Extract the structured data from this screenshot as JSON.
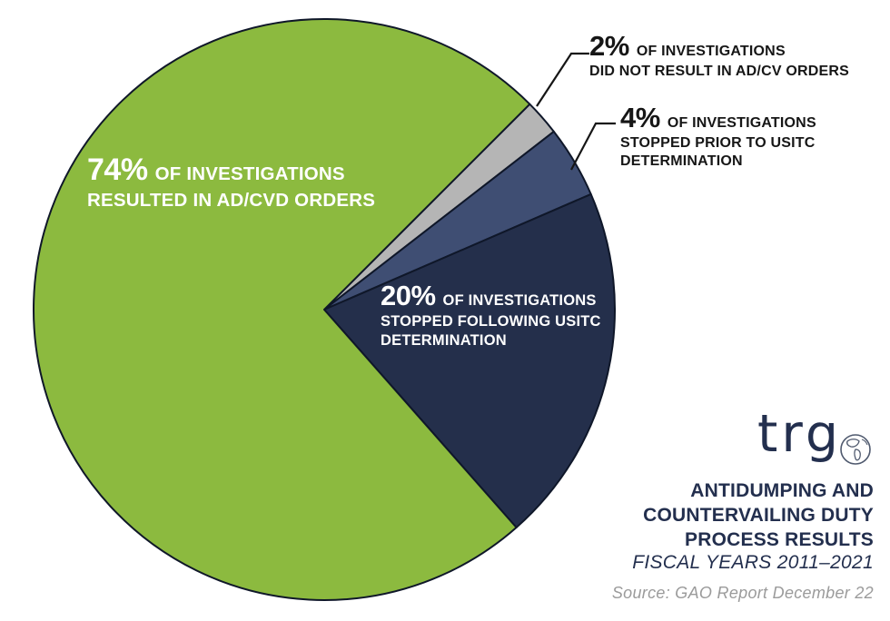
{
  "chart_data": {
    "type": "pie",
    "title": "ANTIDUMPING AND COUNTERVAILING DUTY PROCESS RESULTS",
    "subtitle": "FISCAL YEARS 2011–2021",
    "source": "Source: GAO Report December 22",
    "start_angle_deg": 45,
    "direction": "clockwise",
    "outline_color": "#0f1729",
    "slices": [
      {
        "name": "did-not-result-in-orders",
        "value": 2,
        "pct_label": "2%",
        "suffix": "OF INVESTIGATIONS",
        "lines": [
          "DID NOT RESULT IN AD/CV ORDERS"
        ],
        "color": "#b5b5b5",
        "text_color": "#161616"
      },
      {
        "name": "stopped-prior-to-usitc",
        "value": 4,
        "pct_label": "4%",
        "suffix": "OF INVESTIGATIONS",
        "lines": [
          "STOPPED PRIOR TO USITC",
          "DETERMINATION"
        ],
        "color": "#3f4e73",
        "text_color": "#161616"
      },
      {
        "name": "stopped-following-usitc",
        "value": 20,
        "pct_label": "20%",
        "suffix": "OF INVESTIGATIONS",
        "lines": [
          "STOPPED FOLLOWING USITC",
          "DETERMINATION"
        ],
        "color": "#242f4b",
        "text_color": "#ffffff"
      },
      {
        "name": "resulted-in-ad-cvd-orders",
        "value": 74,
        "pct_label": "74%",
        "suffix": "OF INVESTIGATIONS",
        "lines": [
          "RESULTED IN AD/CVD ORDERS"
        ],
        "color": "#8cba3f",
        "text_color": "#ffffff"
      }
    ]
  },
  "branding": {
    "logo_text": "trg",
    "logo_icon": "globe-icon",
    "navy": "#232f4e",
    "title_lines": [
      "ANTIDUMPING AND",
      "COUNTERVAILING DUTY",
      "PROCESS RESULTS"
    ],
    "subtitle": "FISCAL YEARS 2011–2021",
    "source": "Source: GAO Report December 22",
    "source_color": "#9b9b9b"
  }
}
